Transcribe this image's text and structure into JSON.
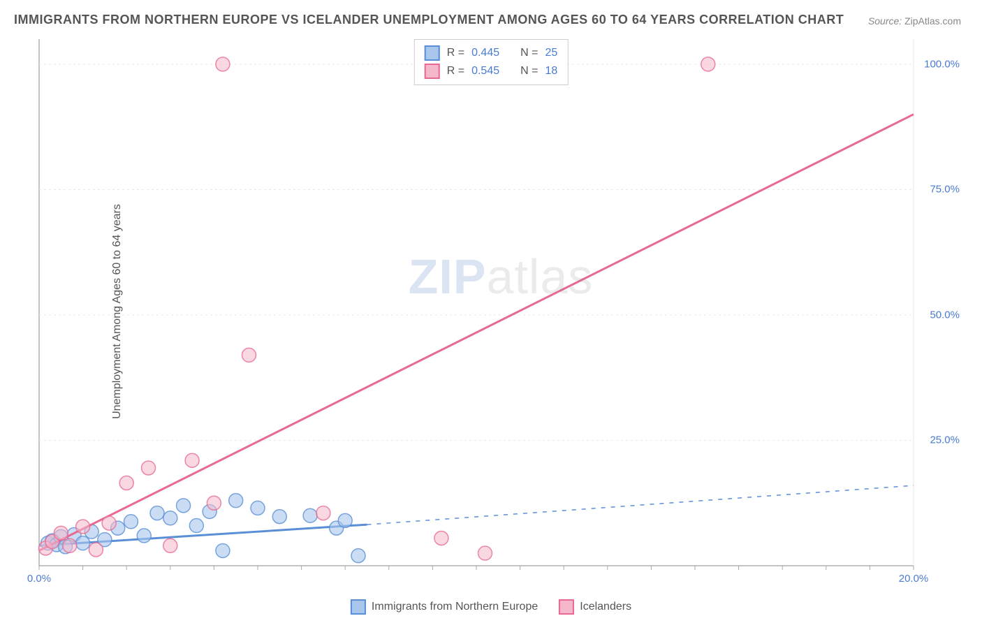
{
  "title": "IMMIGRANTS FROM NORTHERN EUROPE VS ICELANDER UNEMPLOYMENT AMONG AGES 60 TO 64 YEARS CORRELATION CHART",
  "source_label": "Source:",
  "source_value": "ZipAtlas.com",
  "ylabel": "Unemployment Among Ages 60 to 64 years",
  "watermark_zip": "ZIP",
  "watermark_atlas": "atlas",
  "chart": {
    "type": "scatter-with-regression",
    "background_color": "#ffffff",
    "grid_color": "#e8e8e8",
    "axis_color": "#888888",
    "tick_mark_color": "#aaaaaa",
    "label_color": "#4a7bd0",
    "xlim": [
      0,
      20
    ],
    "ylim": [
      0,
      105
    ],
    "x_ticks_major": [
      0,
      20
    ],
    "x_ticks_minor_step": 1,
    "y_ticks": [
      25,
      50,
      75,
      100
    ],
    "x_tick_labels": {
      "0": "0.0%",
      "20": "20.0%"
    },
    "y_tick_labels": {
      "25": "25.0%",
      "50": "50.0%",
      "75": "75.0%",
      "100": "100.0%"
    },
    "series": [
      {
        "name": "Immigrants from Northern Europe",
        "fill": "#a9c7ec",
        "stroke": "#5a8fd6",
        "marker_opacity": 0.6,
        "marker_radius": 10,
        "line_width": 3,
        "r_value": "0.445",
        "n_value": "25",
        "regression": {
          "x1": 0,
          "y1": 4,
          "x2": 7.5,
          "y2": 8.2,
          "dash_x2": 20,
          "dash_y2": 16
        },
        "points": [
          [
            0.2,
            4.5
          ],
          [
            0.3,
            5.0
          ],
          [
            0.4,
            4.2
          ],
          [
            0.5,
            5.8
          ],
          [
            0.6,
            3.8
          ],
          [
            0.8,
            6.2
          ],
          [
            1.0,
            4.5
          ],
          [
            1.2,
            6.8
          ],
          [
            1.5,
            5.2
          ],
          [
            1.8,
            7.5
          ],
          [
            2.1,
            8.8
          ],
          [
            2.4,
            6.0
          ],
          [
            2.7,
            10.5
          ],
          [
            3.0,
            9.5
          ],
          [
            3.3,
            12.0
          ],
          [
            3.6,
            8.0
          ],
          [
            3.9,
            10.8
          ],
          [
            4.2,
            3.0
          ],
          [
            4.5,
            13.0
          ],
          [
            5.0,
            11.5
          ],
          [
            5.5,
            9.8
          ],
          [
            6.2,
            10.0
          ],
          [
            6.8,
            7.5
          ],
          [
            7.3,
            2.0
          ],
          [
            7.0,
            9.0
          ]
        ]
      },
      {
        "name": "Icelanders",
        "fill": "#f5b8ca",
        "stroke": "#e76a94",
        "marker_opacity": 0.55,
        "marker_radius": 10,
        "line_width": 3,
        "r_value": "0.545",
        "n_value": "18",
        "regression": {
          "x1": 0,
          "y1": 3,
          "x2": 20,
          "y2": 90
        },
        "points": [
          [
            0.15,
            3.5
          ],
          [
            0.3,
            4.8
          ],
          [
            0.5,
            6.5
          ],
          [
            0.7,
            4.0
          ],
          [
            1.0,
            7.8
          ],
          [
            1.3,
            3.2
          ],
          [
            1.6,
            8.5
          ],
          [
            2.0,
            16.5
          ],
          [
            2.5,
            19.5
          ],
          [
            3.0,
            4.0
          ],
          [
            3.5,
            21.0
          ],
          [
            4.0,
            12.5
          ],
          [
            4.2,
            100
          ],
          [
            4.8,
            42.0
          ],
          [
            6.5,
            10.5
          ],
          [
            9.2,
            5.5
          ],
          [
            10.2,
            2.5
          ],
          [
            15.3,
            100
          ]
        ]
      }
    ]
  },
  "legend_top": {
    "r_label": "R =",
    "n_label": "N ="
  },
  "legend_bottom": {
    "series1_label": "Immigrants from Northern Europe",
    "series2_label": "Icelanders"
  }
}
